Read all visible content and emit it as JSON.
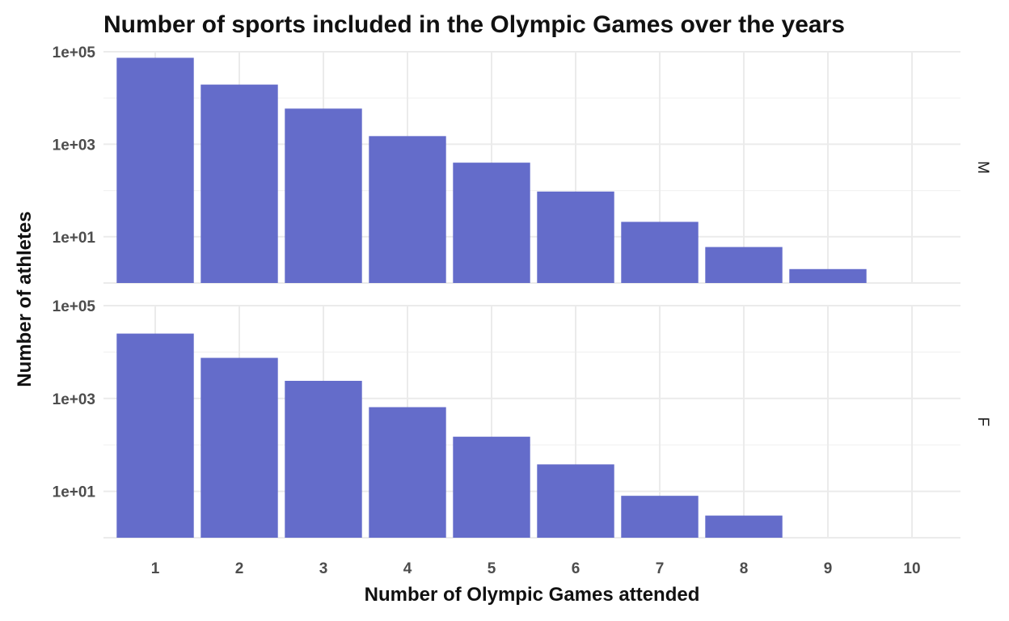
{
  "chart_data": {
    "type": "bar",
    "title": "Number of sports included in the Olympic Games over the years",
    "xlabel": "Number of Olympic Games attended",
    "ylabel": "Number of athletes",
    "y_scale": "log10",
    "ylim": [
      1,
      100000
    ],
    "yticks": [
      10,
      1000,
      100000
    ],
    "ytick_labels": [
      "1e+01",
      "1e+03",
      "1e+05"
    ],
    "categories": [
      "1",
      "2",
      "3",
      "4",
      "5",
      "6",
      "7",
      "8",
      "9",
      "10"
    ],
    "bar_color": "#646cca",
    "facets": [
      {
        "name": "M",
        "values": [
          74000,
          19500,
          5900,
          1500,
          400,
          95,
          21,
          6,
          2,
          null
        ]
      },
      {
        "name": "F",
        "values": [
          25000,
          7500,
          2400,
          650,
          150,
          38,
          8,
          3,
          null,
          null
        ]
      }
    ]
  }
}
